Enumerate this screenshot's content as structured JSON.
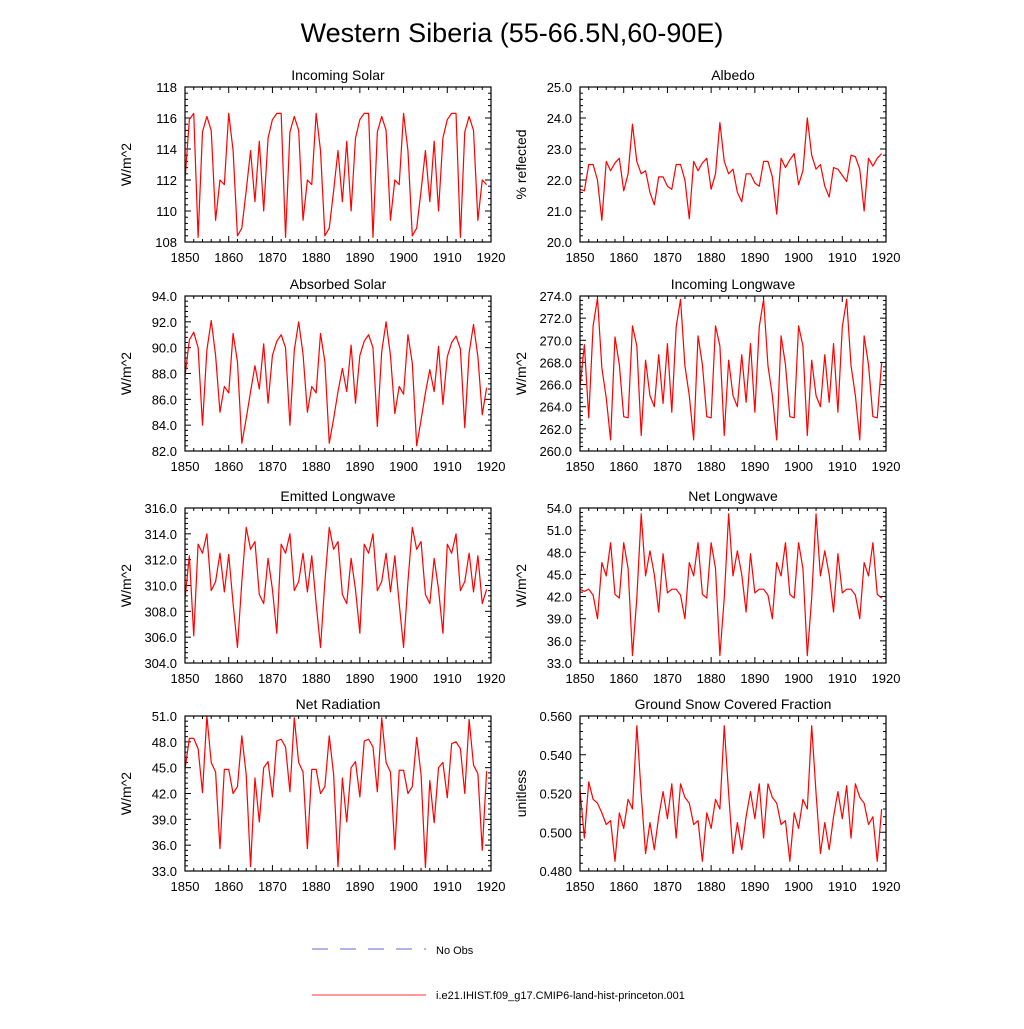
{
  "figure": {
    "title": "Western Siberia (55-66.5N,60-90E)",
    "legend": [
      {
        "label": "No Obs",
        "color": "#6a6ad8",
        "dash": true
      },
      {
        "label": "i.e21.IHIST.f09_g17.CMIP6-land-hist-princeton.001",
        "color": "#ff3030",
        "dash": false
      }
    ]
  },
  "chart_data": [
    {
      "type": "line",
      "title": "Incoming Solar",
      "ylabel": "W/m^2",
      "xlabel": "",
      "xlim": [
        1850,
        1920
      ],
      "ylim": [
        108,
        118
      ],
      "yticks": [
        "108",
        "110",
        "112",
        "114",
        "116",
        "118"
      ],
      "xticks": [
        "1850",
        "1860",
        "1870",
        "1880",
        "1890",
        "1900",
        "1910",
        "1920"
      ],
      "series": [
        {
          "color": "#ff0000",
          "x_start": 1850,
          "values": [
            112.0,
            115.9,
            116.3,
            108.3,
            115.1,
            116.1,
            115.2,
            109.4,
            112.0,
            111.7,
            116.3,
            113.9,
            108.4,
            108.9,
            111.3,
            113.9,
            110.6,
            114.5,
            110.0,
            114.7,
            115.9,
            116.3,
            116.3,
            108.3,
            115.1,
            116.1,
            115.2,
            109.4,
            112.0,
            111.7,
            116.3,
            113.9,
            108.4,
            108.9,
            111.3,
            113.9,
            110.6,
            114.5,
            110.0,
            114.7,
            115.9,
            116.3,
            116.3,
            108.3,
            115.1,
            116.1,
            115.2,
            109.4,
            112.0,
            111.7,
            116.3,
            113.9,
            108.4,
            108.9,
            111.3,
            113.9,
            110.6,
            114.5,
            110.0,
            114.7,
            115.9,
            116.3,
            116.3,
            108.3,
            115.1,
            116.1,
            115.2,
            109.4,
            112.0,
            111.7
          ]
        }
      ]
    },
    {
      "type": "line",
      "title": "Albedo",
      "ylabel": "% reflected",
      "xlabel": "",
      "xlim": [
        1850,
        1920
      ],
      "ylim": [
        20.0,
        25.0
      ],
      "yticks": [
        "20.0",
        "21.0",
        "22.0",
        "23.0",
        "24.0",
        "25.0"
      ],
      "xticks": [
        "1850",
        "1860",
        "1870",
        "1880",
        "1890",
        "1900",
        "1910",
        "1920"
      ],
      "series": [
        {
          "color": "#ff0000",
          "x_start": 1850,
          "values": [
            21.7,
            21.65,
            22.5,
            22.5,
            22.0,
            20.7,
            22.6,
            22.3,
            22.55,
            22.7,
            21.65,
            22.2,
            23.8,
            22.6,
            22.2,
            22.3,
            21.6,
            21.2,
            22.1,
            22.1,
            21.8,
            21.7,
            22.5,
            22.5,
            22.0,
            20.75,
            22.6,
            22.3,
            22.55,
            22.7,
            21.7,
            22.2,
            23.85,
            22.6,
            22.2,
            22.35,
            21.6,
            21.3,
            22.2,
            22.2,
            21.9,
            21.8,
            22.6,
            22.6,
            22.1,
            20.9,
            22.7,
            22.4,
            22.65,
            22.85,
            21.85,
            22.3,
            24.0,
            22.8,
            22.35,
            22.5,
            21.8,
            21.45,
            22.4,
            22.35,
            22.15,
            21.95,
            22.8,
            22.75,
            22.35,
            21.0,
            22.7,
            22.45,
            22.7,
            22.85
          ]
        }
      ]
    },
    {
      "type": "line",
      "title": "Absorbed Solar",
      "ylabel": "W/m^2",
      "xlabel": "",
      "xlim": [
        1850,
        1920
      ],
      "ylim": [
        82.0,
        94.0
      ],
      "yticks": [
        "82.0",
        "84.0",
        "86.0",
        "88.0",
        "90.0",
        "92.0",
        "94.0"
      ],
      "xticks": [
        "1850",
        "1860",
        "1870",
        "1880",
        "1890",
        "1900",
        "1910",
        "1920"
      ],
      "series": [
        {
          "color": "#ff0000",
          "x_start": 1850,
          "values": [
            87.8,
            90.6,
            91.2,
            90.0,
            84.0,
            89.8,
            92.1,
            89.4,
            85.0,
            87.0,
            86.5,
            91.1,
            88.9,
            82.6,
            84.5,
            86.6,
            88.6,
            86.8,
            90.3,
            85.7,
            89.4,
            90.5,
            91.0,
            90.0,
            84.0,
            89.8,
            92.0,
            89.5,
            85.0,
            87.0,
            86.5,
            91.1,
            88.9,
            82.6,
            84.5,
            86.6,
            88.4,
            86.6,
            90.2,
            85.7,
            89.4,
            90.5,
            91.0,
            90.0,
            83.9,
            89.7,
            92.0,
            89.4,
            84.9,
            87.0,
            86.4,
            91.0,
            88.8,
            82.4,
            84.4,
            86.5,
            88.3,
            86.6,
            90.1,
            85.6,
            89.3,
            90.4,
            90.9,
            89.9,
            83.8,
            89.6,
            91.8,
            89.3,
            84.8,
            86.9
          ]
        }
      ]
    },
    {
      "type": "line",
      "title": "Incoming Longwave",
      "ylabel": "W/m^2",
      "xlabel": "",
      "xlim": [
        1850,
        1920
      ],
      "ylim": [
        260.0,
        274.0
      ],
      "yticks": [
        "260.0",
        "262.0",
        "264.0",
        "266.0",
        "268.0",
        "270.0",
        "272.0",
        "274.0"
      ],
      "xticks": [
        "1850",
        "1860",
        "1870",
        "1880",
        "1890",
        "1900",
        "1910",
        "1920"
      ],
      "series": [
        {
          "color": "#ff0000",
          "x_start": 1850,
          "values": [
            265.8,
            269.6,
            263.0,
            271.3,
            273.8,
            267.5,
            264.8,
            261.0,
            270.3,
            267.8,
            263.1,
            263.0,
            271.3,
            269.5,
            261.4,
            268.2,
            265.0,
            264.0,
            268.7,
            264.3,
            269.7,
            263.5,
            271.2,
            273.7,
            267.7,
            265.0,
            261.0,
            270.4,
            267.8,
            263.1,
            263.0,
            271.3,
            269.5,
            261.4,
            268.2,
            265.0,
            264.0,
            268.7,
            264.4,
            269.7,
            263.5,
            271.2,
            273.7,
            267.7,
            265.0,
            261.0,
            270.4,
            267.8,
            263.1,
            263.0,
            271.3,
            269.5,
            261.4,
            268.2,
            265.0,
            264.0,
            268.7,
            264.4,
            269.7,
            263.5,
            271.2,
            273.7,
            267.7,
            265.0,
            261.0,
            270.4,
            267.8,
            263.1,
            263.0,
            268.0
          ]
        }
      ]
    },
    {
      "type": "line",
      "title": "Emitted Longwave",
      "ylabel": "W/m^2",
      "xlabel": "",
      "xlim": [
        1850,
        1920
      ],
      "ylim": [
        304.0,
        316.0
      ],
      "yticks": [
        "304.0",
        "306.0",
        "308.0",
        "310.0",
        "312.0",
        "314.0",
        "316.0"
      ],
      "xticks": [
        "1850",
        "1860",
        "1870",
        "1880",
        "1890",
        "1900",
        "1910",
        "1920"
      ],
      "series": [
        {
          "color": "#ff0000",
          "x_start": 1850,
          "values": [
            309.0,
            312.3,
            306.1,
            313.2,
            312.5,
            314.0,
            309.6,
            310.3,
            312.5,
            309.5,
            312.4,
            308.6,
            305.2,
            310.3,
            314.5,
            312.8,
            313.4,
            309.3,
            308.6,
            312.1,
            309.7,
            306.3,
            313.2,
            312.5,
            314.0,
            309.6,
            310.3,
            312.5,
            309.5,
            312.3,
            308.6,
            305.2,
            310.3,
            314.5,
            312.8,
            313.4,
            309.3,
            308.6,
            312.1,
            309.7,
            306.3,
            313.2,
            312.5,
            314.0,
            309.6,
            310.3,
            312.5,
            309.5,
            312.3,
            308.6,
            305.2,
            310.3,
            314.5,
            312.8,
            313.4,
            309.3,
            308.6,
            312.1,
            309.7,
            306.3,
            313.2,
            312.5,
            314.0,
            309.6,
            310.3,
            312.5,
            309.5,
            312.3,
            308.6,
            309.7
          ]
        }
      ]
    },
    {
      "type": "line",
      "title": "Net Longwave",
      "ylabel": "W/m^2",
      "xlabel": "",
      "xlim": [
        1850,
        1920
      ],
      "ylim": [
        33.0,
        54.0
      ],
      "yticks": [
        "33.0",
        "36.0",
        "39.0",
        "42.0",
        "45.0",
        "48.0",
        "51.0",
        "54.0"
      ],
      "xticks": [
        "1850",
        "1860",
        "1870",
        "1880",
        "1890",
        "1900",
        "1910",
        "1920"
      ],
      "series": [
        {
          "color": "#ff0000",
          "x_start": 1850,
          "values": [
            43.0,
            42.7,
            43.0,
            42.2,
            39.0,
            46.6,
            44.8,
            49.3,
            42.3,
            41.8,
            49.3,
            45.8,
            34.0,
            41.8,
            53.2,
            44.8,
            48.2,
            45.0,
            39.9,
            47.8,
            42.5,
            43.0,
            43.0,
            42.2,
            39.0,
            46.6,
            44.8,
            49.3,
            42.3,
            41.8,
            49.3,
            45.8,
            34.0,
            41.8,
            53.2,
            44.8,
            48.2,
            45.0,
            39.9,
            47.8,
            42.5,
            43.0,
            43.0,
            42.2,
            39.0,
            46.6,
            44.8,
            49.3,
            42.3,
            41.8,
            49.3,
            45.8,
            34.0,
            41.8,
            53.2,
            44.8,
            48.2,
            45.0,
            39.9,
            47.8,
            42.5,
            43.0,
            43.0,
            42.2,
            39.0,
            46.6,
            44.8,
            49.3,
            42.3,
            41.8
          ]
        }
      ]
    },
    {
      "type": "line",
      "title": "Net Radiation",
      "ylabel": "W/m^2",
      "xlabel": "",
      "xlim": [
        1850,
        1920
      ],
      "ylim": [
        33.0,
        51.0
      ],
      "yticks": [
        "33.0",
        "36.0",
        "39.0",
        "42.0",
        "45.0",
        "48.0",
        "51.0"
      ],
      "xticks": [
        "1850",
        "1860",
        "1870",
        "1880",
        "1890",
        "1900",
        "1910",
        "1920"
      ],
      "series": [
        {
          "color": "#ff0000",
          "x_start": 1850,
          "values": [
            44.8,
            48.4,
            48.4,
            47.2,
            42.1,
            51.0,
            45.6,
            44.5,
            35.6,
            44.8,
            44.8,
            42.0,
            42.8,
            48.7,
            44.2,
            33.5,
            43.8,
            38.7,
            45.0,
            45.7,
            41.6,
            48.1,
            48.3,
            47.4,
            42.2,
            50.8,
            45.6,
            44.5,
            35.6,
            44.8,
            44.8,
            42.0,
            42.8,
            48.7,
            44.2,
            33.5,
            43.8,
            38.7,
            45.0,
            45.7,
            41.6,
            48.1,
            48.3,
            47.4,
            42.2,
            50.8,
            45.6,
            44.5,
            35.5,
            44.7,
            44.7,
            42.0,
            42.8,
            48.5,
            44.2,
            33.4,
            43.5,
            38.6,
            45.0,
            45.6,
            41.5,
            47.8,
            48.0,
            47.2,
            42.0,
            50.6,
            45.3,
            44.3,
            35.4,
            44.6
          ]
        }
      ]
    },
    {
      "type": "line",
      "title": "Ground Snow Covered Fraction",
      "ylabel": "unitless",
      "xlabel": "",
      "xlim": [
        1850,
        1920
      ],
      "ylim": [
        0.48,
        0.56
      ],
      "yticks": [
        "0.480",
        "0.500",
        "0.520",
        "0.540",
        "0.560"
      ],
      "xticks": [
        "1850",
        "1860",
        "1870",
        "1880",
        "1890",
        "1900",
        "1910",
        "1920"
      ],
      "series": [
        {
          "color": "#ff0000",
          "x_start": 1850,
          "values": [
            0.522,
            0.497,
            0.526,
            0.517,
            0.515,
            0.51,
            0.504,
            0.506,
            0.485,
            0.51,
            0.502,
            0.517,
            0.512,
            0.555,
            0.52,
            0.489,
            0.505,
            0.491,
            0.508,
            0.521,
            0.507,
            0.525,
            0.497,
            0.525,
            0.518,
            0.515,
            0.504,
            0.506,
            0.485,
            0.51,
            0.502,
            0.517,
            0.512,
            0.555,
            0.52,
            0.489,
            0.505,
            0.491,
            0.508,
            0.521,
            0.507,
            0.525,
            0.497,
            0.525,
            0.518,
            0.515,
            0.504,
            0.506,
            0.485,
            0.51,
            0.502,
            0.517,
            0.512,
            0.555,
            0.52,
            0.489,
            0.505,
            0.491,
            0.508,
            0.521,
            0.507,
            0.524,
            0.497,
            0.525,
            0.518,
            0.515,
            0.504,
            0.508,
            0.485,
            0.512
          ]
        }
      ]
    }
  ]
}
